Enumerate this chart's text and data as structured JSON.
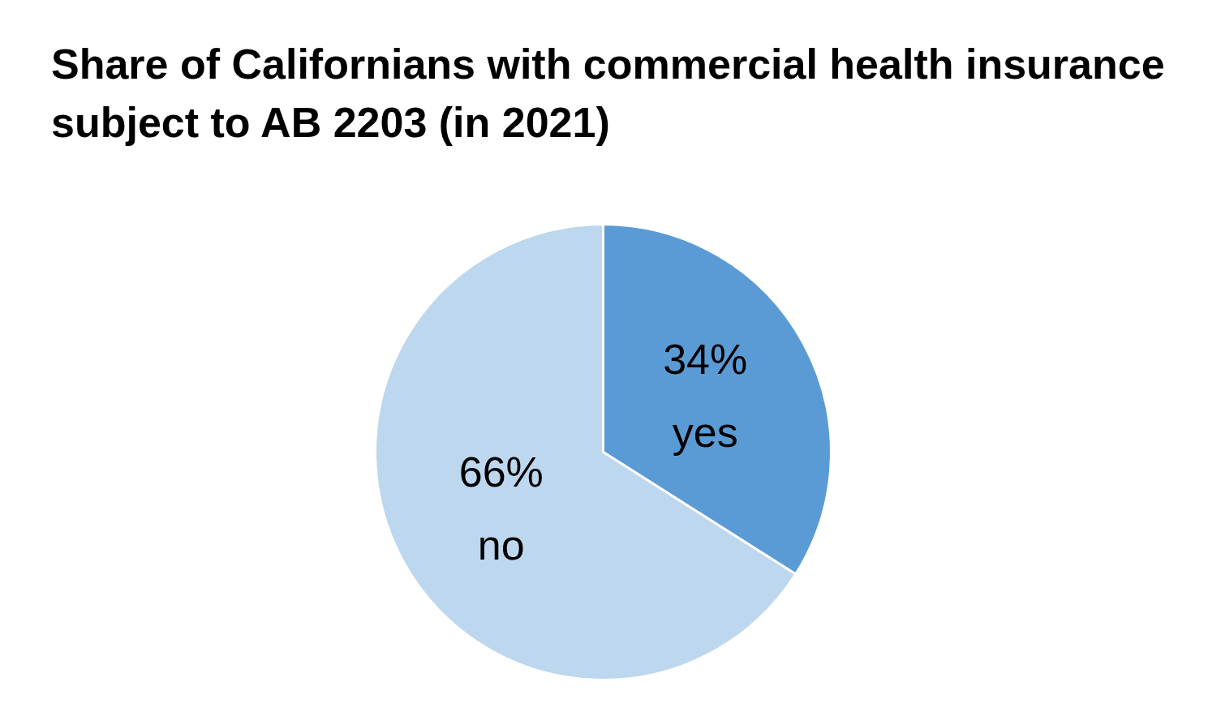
{
  "chart_data": {
    "type": "pie",
    "title": "Share of Californians with commercial health insurance subject to AB 2203 (in 2021)",
    "categories": [
      "yes",
      "no"
    ],
    "values": [
      34,
      66
    ],
    "value_labels": [
      "34%",
      "66%"
    ],
    "colors": [
      "#5b9bd5",
      "#bdd7ee"
    ],
    "legend": false
  }
}
